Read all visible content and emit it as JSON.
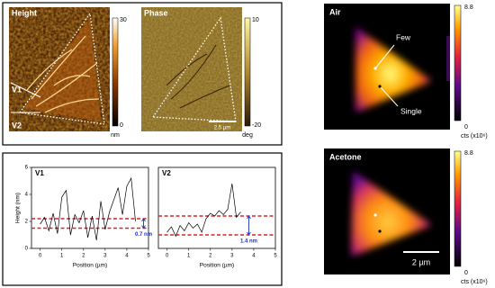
{
  "afm": {
    "height": {
      "label": "Height",
      "markers": [
        "V1",
        "V2"
      ],
      "colorbar": {
        "ticks": [
          30,
          0
        ],
        "unit": "nm"
      }
    },
    "phase": {
      "label": "Phase",
      "scale_bar": "2.5 µm",
      "colorbar": {
        "ticks": [
          10,
          -20
        ],
        "unit": "deg"
      }
    }
  },
  "pl": {
    "air": {
      "label": "Air",
      "annotations": [
        "Few",
        "Single"
      ],
      "colorbar": {
        "ticks": [
          8.8,
          0
        ],
        "unit": "cts (x10⁶)"
      }
    },
    "acetone": {
      "label": "Acetone",
      "scale_bar": "2 µm",
      "colorbar": {
        "ticks": [
          8.8,
          0
        ],
        "unit": "cts (x10⁶)"
      }
    }
  },
  "chart_data": [
    {
      "type": "line",
      "title": "V1",
      "color": "#000000",
      "xlabel": "Position (µm)",
      "ylabel": "Height (nm)",
      "x": [
        0,
        0.2,
        0.4,
        0.6,
        0.8,
        1,
        1.2,
        1.4,
        1.6,
        1.8,
        2,
        2.2,
        2.4,
        2.6,
        2.8,
        3,
        3.2,
        3.4,
        3.6,
        3.8,
        4,
        4.2,
        4.4
      ],
      "values": [
        1.8,
        2.3,
        1.3,
        2.6,
        1.1,
        3.8,
        4.3,
        1.0,
        2.5,
        1.9,
        2.8,
        0.8,
        2.4,
        0.6,
        3.5,
        1.4,
        2.7,
        3.6,
        4.5,
        2.5,
        4.6,
        5.2,
        2.0
      ],
      "xlim": [
        -0.4,
        5
      ],
      "ylim": [
        0,
        6
      ],
      "xticks": [
        0,
        1,
        2,
        3,
        4,
        5
      ],
      "yticks": [
        0,
        2,
        4,
        6
      ],
      "hlines": [
        2.2,
        1.5
      ],
      "hline_color": "#d62728",
      "annotation": "0.7 nm"
    },
    {
      "type": "line",
      "title": "V2",
      "color": "#000000",
      "xlabel": "Position (µm)",
      "x": [
        0,
        0.2,
        0.4,
        0.6,
        0.8,
        1,
        1.2,
        1.4,
        1.6,
        1.8,
        2,
        2.2,
        2.4,
        2.6,
        2.8,
        3,
        3.2,
        3.4
      ],
      "values": [
        1.2,
        1.6,
        0.9,
        1.7,
        1.3,
        1.9,
        1.5,
        1.8,
        1.2,
        2.2,
        2.6,
        2.4,
        2.8,
        2.5,
        2.9,
        4.8,
        2.3,
        2.7
      ],
      "xlim": [
        -0.4,
        5
      ],
      "ylim": [
        0,
        6
      ],
      "xticks": [
        0,
        1,
        2,
        3,
        4,
        5
      ],
      "hlines": [
        2.4,
        1.0
      ],
      "hline_color": "#d62728",
      "annotation": "1.4 nm"
    }
  ]
}
